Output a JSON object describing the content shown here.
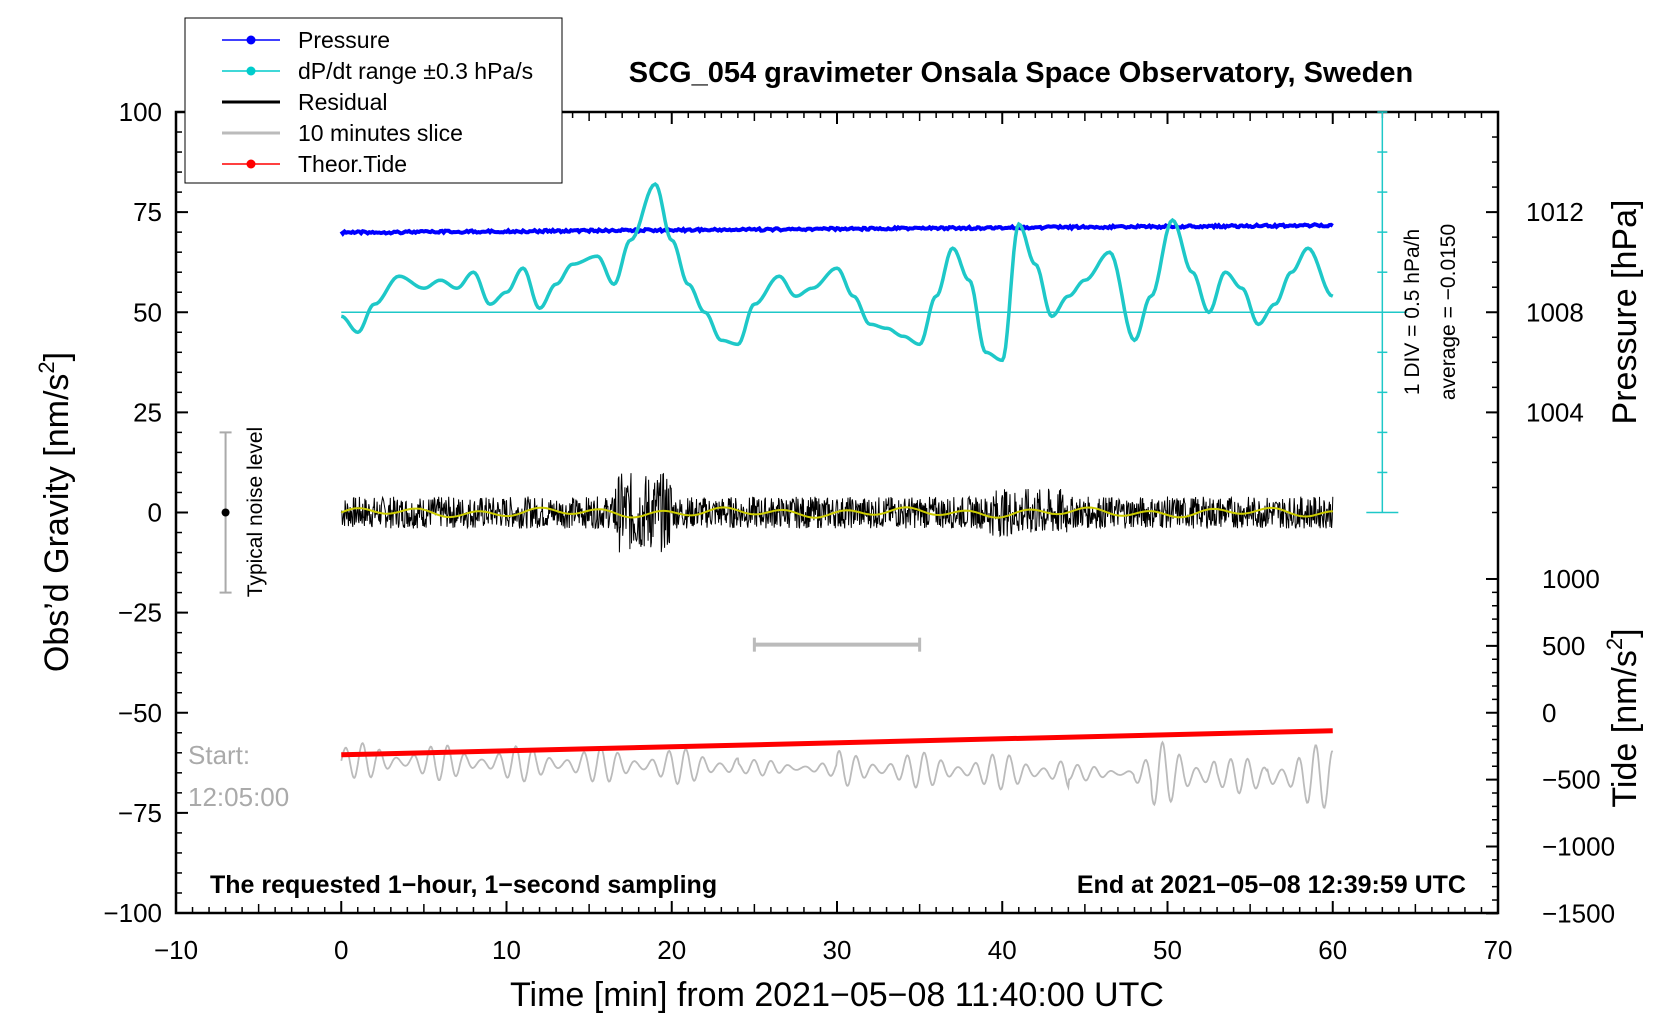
{
  "chart_data": {
    "type": "line",
    "title": "SCG_054 gravimeter Onsala Space Observatory, Sweden",
    "xlabel": "Time [min] from 2021−05−08 11:40:00 UTC",
    "ylabel": "Obs’d Gravity [nm/s",
    "ylabel_sup": "2",
    "ylabel_end": "]",
    "y2label": "Pressure [hPa]",
    "y3label": "Tide [nm/s",
    "y3label_sup": "2",
    "y3label_end": "]",
    "xlim": [
      -10,
      70
    ],
    "ylim": [
      -100,
      100
    ],
    "x_ticks": [
      "−10",
      "0",
      "10",
      "20",
      "30",
      "40",
      "50",
      "60",
      "70"
    ],
    "x_tick_values": [
      -10,
      0,
      10,
      20,
      30,
      40,
      50,
      60,
      70
    ],
    "y_ticks": [
      "100",
      "75",
      "50",
      "25",
      "0",
      "−25",
      "−50",
      "−75",
      "−100"
    ],
    "y_tick_values": [
      100,
      75,
      50,
      25,
      0,
      -25,
      -50,
      -75,
      -100
    ],
    "pressure_axis": {
      "ticks": [
        "1012",
        "1008",
        "1004"
      ],
      "values": [
        1012,
        1008,
        1004
      ],
      "range": [
        1000,
        1016
      ]
    },
    "tide_axis": {
      "ticks": [
        "1000",
        "500",
        "0",
        "−500",
        "−1000",
        "−1500"
      ],
      "values": [
        1000,
        500,
        0,
        -500,
        -1000,
        -1500
      ],
      "range": [
        -1500,
        1500
      ]
    },
    "legend": [
      {
        "name": "Pressure",
        "color": "#0000ff",
        "marker": true
      },
      {
        "name": "dP/dt range ±0.3 hPa/s",
        "color": "#00cccc",
        "marker": true
      },
      {
        "name": "Residual",
        "color": "#000000",
        "marker": false
      },
      {
        "name": "10 minutes slice",
        "color": "#bbbbbb",
        "marker": false
      },
      {
        "name": "Theor.Tide",
        "color": "#ff0000",
        "marker": true
      }
    ],
    "series": [
      {
        "name": "Pressure",
        "color": "#0000ff",
        "x": [
          0,
          60
        ],
        "y": [
          70.2,
          72.0
        ]
      },
      {
        "name": "dP/dt",
        "color": "#1ec8c8",
        "x": [
          0,
          1,
          2,
          3.5,
          5,
          6,
          7,
          8,
          9,
          10,
          11,
          12,
          13,
          14,
          15.5,
          16.5,
          17.5,
          19,
          20,
          21,
          22,
          23,
          24,
          25,
          26.5,
          27.5,
          28.5,
          30,
          31,
          32,
          33,
          34,
          35,
          36,
          37,
          38,
          39,
          40,
          41,
          42,
          43,
          44,
          45,
          46.5,
          48,
          49,
          50.3,
          51.5,
          52.5,
          53.5,
          54.5,
          55.5,
          56.5,
          57.5,
          58.5,
          60
        ],
        "y": [
          49,
          45,
          52,
          59,
          56,
          58,
          56,
          60,
          52,
          55,
          61,
          51,
          57,
          62,
          64,
          57,
          68,
          82,
          68,
          57,
          50,
          43,
          42,
          52,
          59,
          54,
          56,
          61,
          54,
          47,
          46,
          44,
          42,
          54,
          66,
          58,
          40,
          38,
          72,
          62,
          49,
          54,
          58,
          65,
          43,
          54,
          73,
          60,
          50,
          60,
          56,
          47,
          52,
          60,
          66,
          54
        ]
      },
      {
        "name": "Residual",
        "color": "#000000",
        "x": [
          0,
          60
        ],
        "y": [
          0,
          0
        ]
      },
      {
        "name": "10 minutes slice",
        "color": "#bbbbbb",
        "x": [
          0,
          60
        ],
        "y": [
          -62,
          -66
        ]
      },
      {
        "name": "Theor.Tide",
        "color": "#ff0000",
        "x": [
          0,
          60
        ],
        "y": [
          -60.5,
          -54.5
        ]
      }
    ],
    "zero_line": {
      "y": 50,
      "color": "#1ec8c8"
    },
    "scale_bar": {
      "label_div": "1 DIV = 0.5 hPa/h",
      "label_avg": "average = −0.0150",
      "x": 63,
      "y_range": [
        0,
        100
      ],
      "divisions": 10
    },
    "noise_bar": {
      "label": "Typical noise level",
      "x": -7,
      "center": 0,
      "half_range": 20
    },
    "slice_marker": {
      "x_range": [
        25,
        35
      ],
      "y": -33
    },
    "start_label": "Start:",
    "start_time": "12:05:00",
    "footer_left": "The requested 1−hour, 1−second sampling",
    "footer_right": "End at 2021−05−08 12:39:59 UTC"
  }
}
